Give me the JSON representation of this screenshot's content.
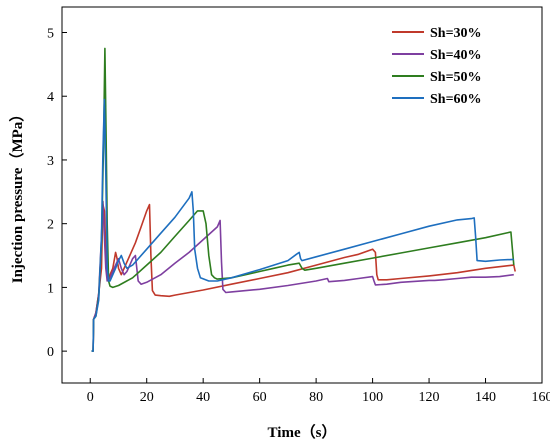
{
  "chart_data": {
    "type": "line",
    "xlabel": "Time（s）",
    "ylabel": "Injection pressure（MPa）",
    "xlim": [
      -10,
      160
    ],
    "ylim": [
      -0.5,
      5.4
    ],
    "xticks": [
      0,
      20,
      40,
      60,
      80,
      100,
      120,
      140,
      160
    ],
    "yticks": [
      0,
      1,
      2,
      3,
      4,
      5
    ],
    "legend_position": "top-right",
    "grid": false,
    "series": [
      {
        "name": "Sh=30%",
        "color": "#c0392b",
        "points": [
          [
            0.5,
            0
          ],
          [
            1,
            0
          ],
          [
            1.2,
            0.5
          ],
          [
            2,
            0.6
          ],
          [
            3,
            0.9
          ],
          [
            4,
            1.3
          ],
          [
            4.5,
            2.3
          ],
          [
            5,
            2.2
          ],
          [
            5.5,
            1.6
          ],
          [
            6,
            1.15
          ],
          [
            6.5,
            1.1
          ],
          [
            7,
            1.2
          ],
          [
            8,
            1.3
          ],
          [
            9,
            1.55
          ],
          [
            9.5,
            1.45
          ],
          [
            10,
            1.3
          ],
          [
            11,
            1.2
          ],
          [
            12,
            1.3
          ],
          [
            14,
            1.5
          ],
          [
            16,
            1.7
          ],
          [
            18,
            1.95
          ],
          [
            20,
            2.2
          ],
          [
            21,
            2.3
          ],
          [
            21.5,
            1.5
          ],
          [
            22,
            0.95
          ],
          [
            23,
            0.88
          ],
          [
            25,
            0.87
          ],
          [
            28,
            0.86
          ],
          [
            30,
            0.88
          ],
          [
            40,
            0.96
          ],
          [
            50,
            1.05
          ],
          [
            60,
            1.14
          ],
          [
            70,
            1.23
          ],
          [
            80,
            1.35
          ],
          [
            90,
            1.47
          ],
          [
            95,
            1.52
          ],
          [
            100,
            1.6
          ],
          [
            101,
            1.55
          ],
          [
            101.5,
            1.2
          ],
          [
            102,
            1.12
          ],
          [
            105,
            1.12
          ],
          [
            110,
            1.14
          ],
          [
            120,
            1.18
          ],
          [
            130,
            1.23
          ],
          [
            140,
            1.3
          ],
          [
            148,
            1.34
          ],
          [
            150,
            1.35
          ],
          [
            150.5,
            1.25
          ]
        ]
      },
      {
        "name": "Sh=40%",
        "color": "#7e3fa0",
        "points": [
          [
            0.5,
            0
          ],
          [
            1,
            0
          ],
          [
            1.2,
            0.5
          ],
          [
            2,
            0.6
          ],
          [
            3,
            0.9
          ],
          [
            4,
            1.8
          ],
          [
            4.5,
            2.35
          ],
          [
            5,
            1.8
          ],
          [
            5.5,
            1.3
          ],
          [
            6,
            1.1
          ],
          [
            7,
            1.15
          ],
          [
            8,
            1.25
          ],
          [
            9,
            1.35
          ],
          [
            10,
            1.45
          ],
          [
            11,
            1.3
          ],
          [
            12,
            1.2
          ],
          [
            13,
            1.25
          ],
          [
            14,
            1.35
          ],
          [
            15,
            1.45
          ],
          [
            16,
            1.5
          ],
          [
            17,
            1.1
          ],
          [
            18,
            1.05
          ],
          [
            20,
            1.08
          ],
          [
            25,
            1.2
          ],
          [
            30,
            1.38
          ],
          [
            35,
            1.55
          ],
          [
            40,
            1.75
          ],
          [
            45,
            1.95
          ],
          [
            46,
            2.05
          ],
          [
            46.5,
            1.4
          ],
          [
            47,
            0.97
          ],
          [
            48,
            0.92
          ],
          [
            50,
            0.93
          ],
          [
            60,
            0.97
          ],
          [
            70,
            1.03
          ],
          [
            80,
            1.1
          ],
          [
            84,
            1.14
          ],
          [
            84.5,
            1.09
          ],
          [
            90,
            1.11
          ],
          [
            95,
            1.14
          ],
          [
            100,
            1.17
          ],
          [
            100.5,
            1.1
          ],
          [
            101,
            1.04
          ],
          [
            105,
            1.05
          ],
          [
            110,
            1.08
          ],
          [
            120,
            1.11
          ],
          [
            122,
            1.11
          ],
          [
            125,
            1.12
          ],
          [
            130,
            1.14
          ],
          [
            135,
            1.16
          ],
          [
            140,
            1.16
          ],
          [
            145,
            1.17
          ],
          [
            150,
            1.2
          ]
        ]
      },
      {
        "name": "Sh=50%",
        "color": "#2e7d1f",
        "points": [
          [
            0.5,
            0
          ],
          [
            1,
            0
          ],
          [
            1.2,
            0.5
          ],
          [
            2,
            0.55
          ],
          [
            3,
            0.85
          ],
          [
            4,
            1.7
          ],
          [
            4.7,
            3.2
          ],
          [
            5.2,
            4.75
          ],
          [
            5.6,
            3.5
          ],
          [
            6,
            2.0
          ],
          [
            6.5,
            1.1
          ],
          [
            7,
            1.02
          ],
          [
            8,
            1.0
          ],
          [
            10,
            1.03
          ],
          [
            15,
            1.15
          ],
          [
            20,
            1.35
          ],
          [
            25,
            1.55
          ],
          [
            30,
            1.8
          ],
          [
            35,
            2.05
          ],
          [
            38,
            2.2
          ],
          [
            40,
            2.2
          ],
          [
            41,
            2.0
          ],
          [
            42,
            1.5
          ],
          [
            43,
            1.2
          ],
          [
            44,
            1.15
          ],
          [
            45,
            1.13
          ],
          [
            50,
            1.15
          ],
          [
            55,
            1.2
          ],
          [
            60,
            1.25
          ],
          [
            65,
            1.3
          ],
          [
            70,
            1.35
          ],
          [
            74,
            1.38
          ],
          [
            75,
            1.3
          ],
          [
            76,
            1.27
          ],
          [
            80,
            1.3
          ],
          [
            90,
            1.38
          ],
          [
            100,
            1.46
          ],
          [
            110,
            1.54
          ],
          [
            120,
            1.62
          ],
          [
            130,
            1.7
          ],
          [
            140,
            1.78
          ],
          [
            148,
            1.86
          ],
          [
            149,
            1.87
          ],
          [
            149.5,
            1.6
          ],
          [
            150,
            1.35
          ]
        ]
      },
      {
        "name": "Sh=60%",
        "color": "#1e6fbf",
        "points": [
          [
            0.5,
            0
          ],
          [
            1,
            0
          ],
          [
            1.2,
            0.5
          ],
          [
            2,
            0.55
          ],
          [
            3,
            0.8
          ],
          [
            4,
            1.8
          ],
          [
            4.5,
            3.1
          ],
          [
            5,
            3.95
          ],
          [
            5.5,
            2.8
          ],
          [
            6,
            1.3
          ],
          [
            6.5,
            1.1
          ],
          [
            7,
            1.1
          ],
          [
            8,
            1.2
          ],
          [
            9,
            1.3
          ],
          [
            10,
            1.42
          ],
          [
            11,
            1.5
          ],
          [
            12,
            1.38
          ],
          [
            13,
            1.3
          ],
          [
            15,
            1.35
          ],
          [
            20,
            1.6
          ],
          [
            25,
            1.85
          ],
          [
            30,
            2.1
          ],
          [
            35,
            2.4
          ],
          [
            36,
            2.5
          ],
          [
            36.5,
            2.2
          ],
          [
            37,
            1.6
          ],
          [
            38,
            1.3
          ],
          [
            39,
            1.15
          ],
          [
            42,
            1.1
          ],
          [
            45,
            1.1
          ],
          [
            50,
            1.15
          ],
          [
            60,
            1.28
          ],
          [
            70,
            1.42
          ],
          [
            73,
            1.52
          ],
          [
            74,
            1.55
          ],
          [
            74.5,
            1.45
          ],
          [
            75,
            1.42
          ],
          [
            80,
            1.48
          ],
          [
            90,
            1.6
          ],
          [
            100,
            1.72
          ],
          [
            110,
            1.84
          ],
          [
            120,
            1.96
          ],
          [
            130,
            2.06
          ],
          [
            135,
            2.08
          ],
          [
            136,
            2.09
          ],
          [
            136.5,
            1.8
          ],
          [
            137,
            1.42
          ],
          [
            140,
            1.41
          ],
          [
            145,
            1.43
          ],
          [
            150,
            1.44
          ]
        ]
      }
    ]
  }
}
